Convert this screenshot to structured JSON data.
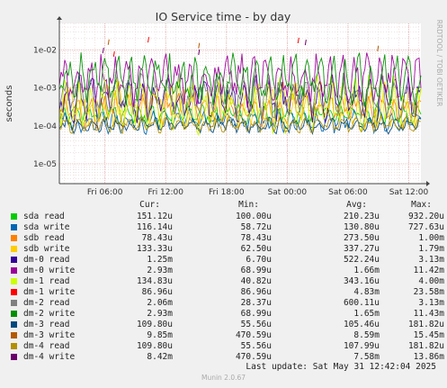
{
  "title": "IO Service time - by day",
  "side_label": "RRDTOOL / TOBI OETIKER",
  "chart_data": {
    "type": "line",
    "title": "IO Service time - by day",
    "ylabel": "seconds",
    "yscale": "log",
    "ylim": [
      3e-06,
      0.05
    ],
    "y_ticks": [
      "1e-05",
      "1e-04",
      "1e-03",
      "1e-02"
    ],
    "y_tick_values": [
      1e-05,
      0.0001,
      0.001,
      0.01
    ],
    "x_ticks": [
      "Fri 06:00",
      "Fri 12:00",
      "Fri 18:00",
      "Sat 00:00",
      "Sat 06:00",
      "Sat 12:00"
    ],
    "x_tick_hours": [
      6,
      12,
      18,
      24,
      30,
      36
    ],
    "x_range_hours": [
      1.5,
      37.2
    ],
    "grid": true,
    "series": [
      {
        "name": "sda read",
        "color": "#00cc00",
        "cur": "151.12u",
        "min": "100.00u",
        "avg": "210.23u",
        "max": "932.20u"
      },
      {
        "name": "sda write",
        "color": "#0066b3",
        "cur": "116.14u",
        "min": "58.72u",
        "avg": "130.80u",
        "max": "727.63u"
      },
      {
        "name": "sdb read",
        "color": "#ff8000",
        "cur": "78.43u",
        "min": "78.43u",
        "avg": "273.50u",
        "max": "1.00m"
      },
      {
        "name": "sdb write",
        "color": "#ffcc00",
        "cur": "133.33u",
        "min": "62.50u",
        "avg": "337.27u",
        "max": "1.79m"
      },
      {
        "name": "dm-0 read",
        "color": "#330099",
        "cur": "1.25m",
        "min": "6.70u",
        "avg": "522.24u",
        "max": "3.13m"
      },
      {
        "name": "dm-0 write",
        "color": "#990099",
        "cur": "2.93m",
        "min": "68.99u",
        "avg": "1.66m",
        "max": "11.42m"
      },
      {
        "name": "dm-1 read",
        "color": "#ccff00",
        "cur": "134.83u",
        "min": "40.82u",
        "avg": "343.16u",
        "max": "4.00m"
      },
      {
        "name": "dm-1 write",
        "color": "#ff0000",
        "cur": "86.96u",
        "min": "86.96u",
        "avg": "4.83m",
        "max": "23.58m"
      },
      {
        "name": "dm-2 read",
        "color": "#808080",
        "cur": "2.06m",
        "min": "28.37u",
        "avg": "600.11u",
        "max": "3.13m"
      },
      {
        "name": "dm-2 write",
        "color": "#008f00",
        "cur": "2.93m",
        "min": "68.99u",
        "avg": "1.65m",
        "max": "11.43m"
      },
      {
        "name": "dm-3 read",
        "color": "#00487d",
        "cur": "109.80u",
        "min": "55.56u",
        "avg": "105.46u",
        "max": "181.82u"
      },
      {
        "name": "dm-3 write",
        "color": "#b35a00",
        "cur": "9.85m",
        "min": "470.59u",
        "avg": "8.59m",
        "max": "15.45m"
      },
      {
        "name": "dm-4 read",
        "color": "#b38f00",
        "cur": "109.80u",
        "min": "55.56u",
        "avg": "107.99u",
        "max": "181.82u"
      },
      {
        "name": "dm-4 write",
        "color": "#6b006b",
        "cur": "8.42m",
        "min": "470.59u",
        "avg": "7.58m",
        "max": "13.86m"
      }
    ]
  },
  "legend_headers": {
    "cur": "Cur:",
    "min": "Min:",
    "avg": "Avg:",
    "max": "Max:"
  },
  "last_update": "Last update: Sat May 31 12:42:04 2025",
  "footer": "Munin 2.0.67"
}
